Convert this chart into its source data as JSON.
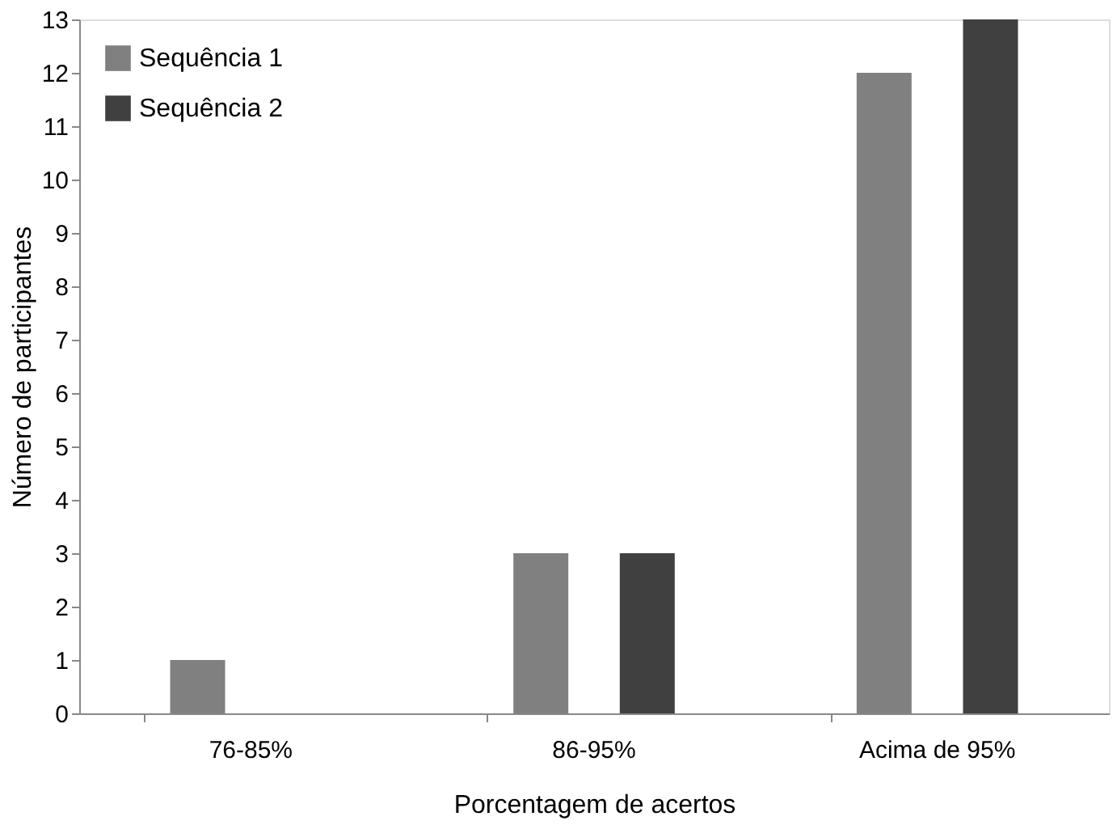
{
  "chart_data": {
    "type": "bar",
    "xlabel": "Porcentagem de acertos",
    "ylabel": "Número de participantes",
    "categories": [
      "76-85%",
      "86-95%",
      "Acima de 95%"
    ],
    "series": [
      {
        "name": "Sequência 1",
        "color": "#808080",
        "values": [
          1,
          3,
          12
        ]
      },
      {
        "name": "Sequência 2",
        "color": "#404040",
        "values": [
          0,
          3,
          13
        ]
      }
    ],
    "ylim": [
      0,
      13
    ],
    "yticks": [
      0,
      1,
      2,
      3,
      4,
      5,
      6,
      7,
      8,
      9,
      10,
      11,
      12,
      13
    ],
    "grid": false,
    "legend": "top left"
  }
}
